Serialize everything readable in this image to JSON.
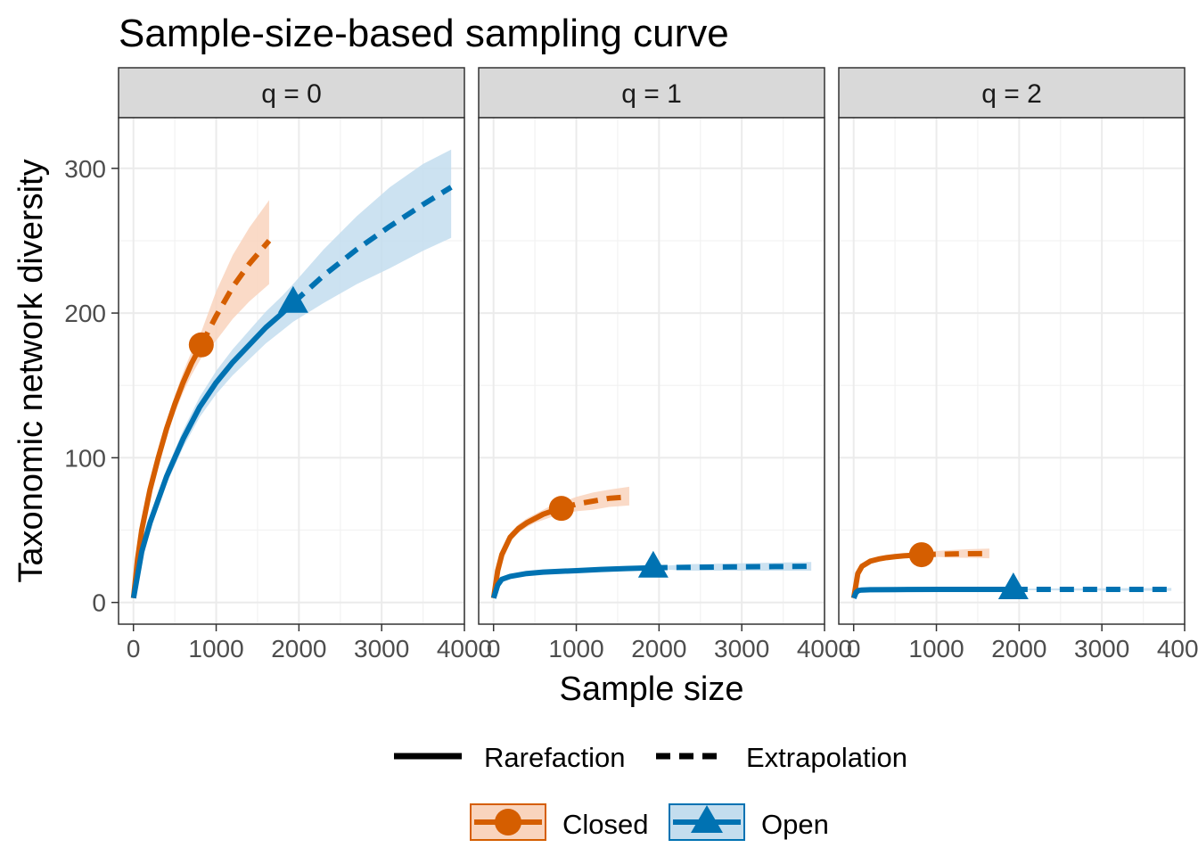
{
  "chart_data": {
    "type": "line",
    "title": "Sample-size-based sampling curve",
    "xlabel": "Sample size",
    "ylabel": "Taxonomic network diversity",
    "xlim": [
      -180,
      4000
    ],
    "ylim": [
      -15,
      335
    ],
    "x_ticks": [
      0,
      1000,
      2000,
      3000,
      4000
    ],
    "x_tick_labels": [
      "0",
      "1000",
      "2000",
      "3000",
      "4000"
    ],
    "y_ticks": [
      0,
      100,
      200,
      300
    ],
    "y_tick_labels": [
      "0",
      "100",
      "200",
      "300"
    ],
    "grid": true,
    "legend_position": "bottom",
    "legend_linetype": [
      {
        "label": "Rarefaction",
        "style": "solid"
      },
      {
        "label": "Extrapolation",
        "style": "dashed"
      }
    ],
    "legend_group": [
      {
        "label": "Closed",
        "color": "#D55E00",
        "marker": "circle"
      },
      {
        "label": "Open",
        "color": "#0072B2",
        "marker": "triangle"
      }
    ],
    "colors": {
      "closed": "#D55E00",
      "open": "#0072B2",
      "strip_bg": "#D9D9D9",
      "grid": "#EBEBEB"
    },
    "panels": [
      {
        "strip": "q = 0",
        "series": [
          {
            "name": "Closed",
            "observed": {
              "x": 820,
              "y": 178
            },
            "rarefaction": {
              "x": [
                1,
                50,
                100,
                200,
                300,
                400,
                500,
                600,
                700,
                820
              ],
              "y": [
                3,
                30,
                50,
                78,
                100,
                120,
                137,
                152,
                165,
                178
              ]
            },
            "extrapolation": {
              "x": [
                820,
                1000,
                1200,
                1400,
                1640
              ],
              "y": [
                178,
                198,
                218,
                234,
                250
              ]
            },
            "ci_lower": [
              3,
              29,
              48,
              75,
              96,
              115,
              131,
              145,
              157,
              169,
              181,
              196,
              208,
              220
            ],
            "ci_upper": [
              3,
              31,
              52,
              81,
              104,
              125,
              143,
              159,
              173,
              187,
              215,
              240,
              259,
              278
            ]
          },
          {
            "name": "Open",
            "observed": {
              "x": 1930,
              "y": 207
            },
            "rarefaction": {
              "x": [
                1,
                100,
                200,
                400,
                600,
                800,
                1000,
                1200,
                1400,
                1600,
                1800,
                1930
              ],
              "y": [
                3,
                35,
                55,
                87,
                113,
                135,
                152,
                166,
                178,
                190,
                200,
                207
              ]
            },
            "extrapolation": {
              "x": [
                1930,
                2300,
                2700,
                3100,
                3500,
                3840
              ],
              "y": [
                207,
                226,
                244,
                260,
                275,
                287
              ]
            },
            "ci_lower": [
              3,
              33,
              52,
              82,
              107,
              128,
              144,
              157,
              168,
              179,
              188,
              194,
              207,
              220,
              231,
              243,
              252,
              260
            ],
            "ci_upper": [
              3,
              37,
              58,
              92,
              119,
              142,
              160,
              175,
              188,
              201,
              212,
              220,
              244,
              267,
              287,
              303,
              313,
              318
            ]
          }
        ]
      },
      {
        "strip": "q = 1",
        "series": [
          {
            "name": "Closed",
            "observed": {
              "x": 820,
              "y": 65
            },
            "rarefaction": {
              "x": [
                1,
                50,
                100,
                200,
                300,
                400,
                500,
                600,
                700,
                820
              ],
              "y": [
                3,
                22,
                33,
                45,
                51,
                55,
                58,
                61,
                63,
                65
              ]
            },
            "extrapolation": {
              "x": [
                820,
                1000,
                1200,
                1400,
                1640
              ],
              "y": [
                65,
                68,
                70,
                72,
                73
              ]
            },
            "ci_lower": [
              3,
              21,
              31,
              42,
              48,
              52,
              55,
              57,
              59,
              61,
              63,
              64,
              66,
              67
            ],
            "ci_upper": [
              3,
              23,
              35,
              48,
              54,
              58,
              61,
              64,
              67,
              69,
              73,
              76,
              78,
              80
            ]
          },
          {
            "name": "Open",
            "observed": {
              "x": 1930,
              "y": 24
            },
            "rarefaction": {
              "x": [
                1,
                50,
                100,
                200,
                400,
                600,
                800,
                1000,
                1300,
                1600,
                1930
              ],
              "y": [
                3,
                12,
                16,
                18,
                20,
                21,
                21.5,
                22,
                22.8,
                23.4,
                24
              ]
            },
            "extrapolation": {
              "x": [
                1930,
                2400,
                2900,
                3400,
                3840
              ],
              "y": [
                24,
                24.3,
                24.6,
                24.8,
                25
              ]
            },
            "ci_lower": [
              2,
              11,
              15,
              17,
              19,
              20,
              20.5,
              21,
              21.8,
              22.4,
              23,
              22,
              22,
              22,
              22
            ],
            "ci_upper": [
              4,
              13,
              17,
              19,
              21,
              22,
              22.5,
              23,
              23.8,
              24.4,
              25,
              26.5,
              27,
              27.5,
              28
            ]
          }
        ]
      },
      {
        "strip": "q = 2",
        "series": [
          {
            "name": "Closed",
            "observed": {
              "x": 820,
              "y": 33
            },
            "rarefaction": {
              "x": [
                1,
                50,
                100,
                200,
                300,
                400,
                500,
                600,
                700,
                820
              ],
              "y": [
                3,
                20,
                25,
                28.5,
                30,
                31,
                31.7,
                32.2,
                32.6,
                33
              ]
            },
            "extrapolation": {
              "x": [
                820,
                1000,
                1200,
                1400,
                1640
              ],
              "y": [
                33,
                33.3,
                33.5,
                33.7,
                33.8
              ]
            },
            "ci_lower": [
              3,
              19,
              24,
              27.5,
              29,
              30,
              30.7,
              31.2,
              31.6,
              32,
              31.5,
              31,
              30.8,
              30.5
            ],
            "ci_upper": [
              3,
              21,
              26,
              29.5,
              31,
              32,
              32.7,
              33.2,
              33.6,
              34,
              35.5,
              36.3,
              36.8,
              37.2
            ]
          },
          {
            "name": "Open",
            "observed": {
              "x": 1930,
              "y": 9
            },
            "rarefaction": {
              "x": [
                1,
                30,
                60,
                100,
                200,
                500,
                1000,
                1500,
                1930
              ],
              "y": [
                3,
                7,
                8.3,
                8.6,
                8.8,
                8.9,
                9,
                9,
                9
              ]
            },
            "extrapolation": {
              "x": [
                1930,
                2400,
                2900,
                3400,
                3840
              ],
              "y": [
                9,
                9,
                9,
                9,
                9
              ]
            },
            "ci_lower": [
              2,
              6.5,
              7.8,
              8.1,
              8.3,
              8.4,
              8.5,
              8.5,
              8.5,
              8.3,
              8.2,
              8.1,
              8
            ],
            "ci_upper": [
              4,
              7.5,
              8.8,
              9.1,
              9.3,
              9.4,
              9.5,
              9.5,
              9.5,
              9.7,
              9.8,
              9.9,
              10
            ]
          }
        ]
      }
    ]
  }
}
